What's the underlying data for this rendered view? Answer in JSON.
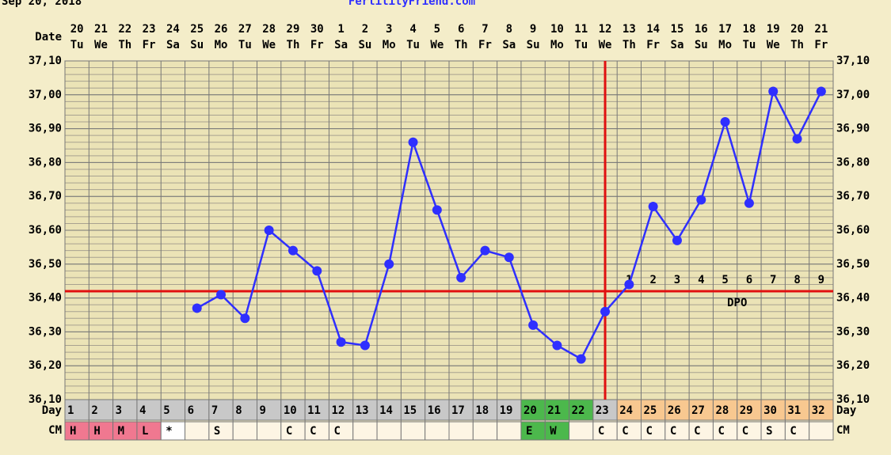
{
  "chart_data": {
    "type": "line",
    "header_date": "Sep 20, 2018",
    "site": "FertilityFriend.com",
    "date_label": "Date",
    "day_label": "Day",
    "cm_label": "CM",
    "dpo_label": "DPO",
    "dates": [
      "20",
      "21",
      "22",
      "23",
      "24",
      "25",
      "26",
      "27",
      "28",
      "29",
      "30",
      "1",
      "2",
      "3",
      "4",
      "5",
      "6",
      "7",
      "8",
      "9",
      "10",
      "11",
      "12",
      "13",
      "14",
      "15",
      "16",
      "17",
      "18",
      "19",
      "20",
      "21"
    ],
    "weekdays": [
      "Tu",
      "We",
      "Th",
      "Fr",
      "Sa",
      "Su",
      "Mo",
      "Tu",
      "We",
      "Th",
      "Fr",
      "Sa",
      "Su",
      "Mo",
      "Tu",
      "We",
      "Th",
      "Fr",
      "Sa",
      "Su",
      "Mo",
      "Tu",
      "We",
      "Th",
      "Fr",
      "Sa",
      "Su",
      "Mo",
      "Tu",
      "We",
      "Th",
      "Fr"
    ],
    "categories": [
      1,
      2,
      3,
      4,
      5,
      6,
      7,
      8,
      9,
      10,
      11,
      12,
      13,
      14,
      15,
      16,
      17,
      18,
      19,
      20,
      21,
      22,
      23,
      24,
      25,
      26,
      27,
      28,
      29,
      30,
      31,
      32
    ],
    "values": [
      null,
      null,
      null,
      null,
      null,
      36.37,
      36.41,
      36.34,
      36.6,
      36.54,
      36.48,
      36.27,
      36.26,
      36.5,
      36.86,
      36.66,
      36.46,
      36.54,
      36.52,
      36.32,
      36.26,
      36.22,
      36.36,
      36.44,
      36.67,
      36.57,
      36.69,
      36.92,
      36.68,
      37.01,
      36.87,
      37.01
    ],
    "color": "#2f2fff",
    "coverline": 36.42,
    "ovulation_day": 23,
    "line_color": "#e01010",
    "dpo": [
      null,
      null,
      null,
      null,
      null,
      null,
      null,
      null,
      null,
      null,
      null,
      null,
      null,
      null,
      null,
      null,
      null,
      null,
      null,
      null,
      null,
      null,
      null,
      1,
      2,
      3,
      4,
      5,
      6,
      7,
      8,
      9
    ],
    "cm": [
      "H",
      "H",
      "M",
      "L",
      "*",
      null,
      "S",
      null,
      null,
      "C",
      "C",
      "C",
      null,
      null,
      null,
      null,
      null,
      null,
      null,
      "E",
      "W",
      null,
      "C",
      "C",
      "C",
      "C",
      "C",
      "C",
      "C",
      "S",
      "C",
      null
    ],
    "day_fill": [
      "#c8c8c8",
      "#c8c8c8",
      "#c8c8c8",
      "#c8c8c8",
      "#c8c8c8",
      "#c8c8c8",
      "#c8c8c8",
      "#c8c8c8",
      "#c8c8c8",
      "#c8c8c8",
      "#c8c8c8",
      "#c8c8c8",
      "#c8c8c8",
      "#c8c8c8",
      "#c8c8c8",
      "#c8c8c8",
      "#c8c8c8",
      "#c8c8c8",
      "#c8c8c8",
      "#4cb84c",
      "#4cb84c",
      "#4cb84c",
      "#c8c8c8",
      "#f8c890",
      "#f8c890",
      "#f8c890",
      "#f8c890",
      "#f8c890",
      "#f8c890",
      "#f8c890",
      "#f8c890",
      "#f8c890"
    ],
    "cm_fill": [
      "#f07890",
      "#f07890",
      "#f07890",
      "#f07890",
      "#ffffff",
      "#fdf5e4",
      "#fdf5e4",
      "#fdf5e4",
      "#fdf5e4",
      "#fdf5e4",
      "#fdf5e4",
      "#fdf5e4",
      "#fdf5e4",
      "#fdf5e4",
      "#fdf5e4",
      "#fdf5e4",
      "#fdf5e4",
      "#fdf5e4",
      "#fdf5e4",
      "#4cb84c",
      "#4cb84c",
      "#fdf5e4",
      "#fdf5e4",
      "#fdf5e4",
      "#fdf5e4",
      "#fdf5e4",
      "#fdf5e4",
      "#fdf5e4",
      "#fdf5e4",
      "#fdf5e4",
      "#fdf5e4",
      "#fdf5e4"
    ],
    "ylim": [
      36.1,
      37.1
    ],
    "yticks": [
      {
        "value": 36.1,
        "label": "36,10"
      },
      {
        "value": 36.2,
        "label": "36,20"
      },
      {
        "value": 36.3,
        "label": "36,30"
      },
      {
        "value": 36.4,
        "label": "36,40"
      },
      {
        "value": 36.5,
        "label": "36,50"
      },
      {
        "value": 36.6,
        "label": "36,60"
      },
      {
        "value": 36.7,
        "label": "36,70"
      },
      {
        "value": 36.8,
        "label": "36,80"
      },
      {
        "value": 36.9,
        "label": "36,90"
      },
      {
        "value": 37.0,
        "label": "37,00"
      },
      {
        "value": 37.1,
        "label": "37,10"
      }
    ],
    "grid": true
  }
}
